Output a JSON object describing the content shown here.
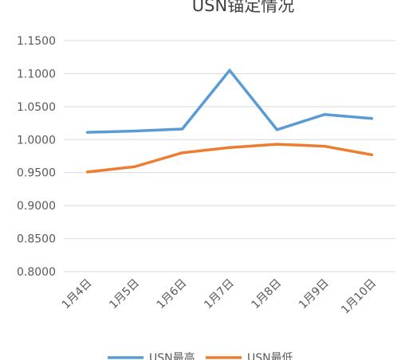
{
  "chart_data": {
    "type": "line",
    "title": "USN锚定情况",
    "xlabel": "",
    "ylabel": "",
    "categories": [
      "1月4日",
      "1月5日",
      "1月6日",
      "1月7日",
      "1月8日",
      "1月9日",
      "1月10日"
    ],
    "y_ticks": [
      "0.8000",
      "0.8500",
      "0.9000",
      "0.9500",
      "1.0000",
      "1.0500",
      "1.1000",
      "1.1500"
    ],
    "ylim": [
      0.8,
      1.15
    ],
    "grid": true,
    "legend_position": "bottom",
    "series": [
      {
        "name": "USN最高",
        "color": "#5b9bd5",
        "values": [
          1.011,
          1.013,
          1.016,
          1.105,
          1.015,
          1.038,
          1.032
        ]
      },
      {
        "name": "USN最低",
        "color": "#ed7d31",
        "values": [
          0.951,
          0.959,
          0.98,
          0.988,
          0.993,
          0.99,
          0.977
        ]
      }
    ]
  }
}
